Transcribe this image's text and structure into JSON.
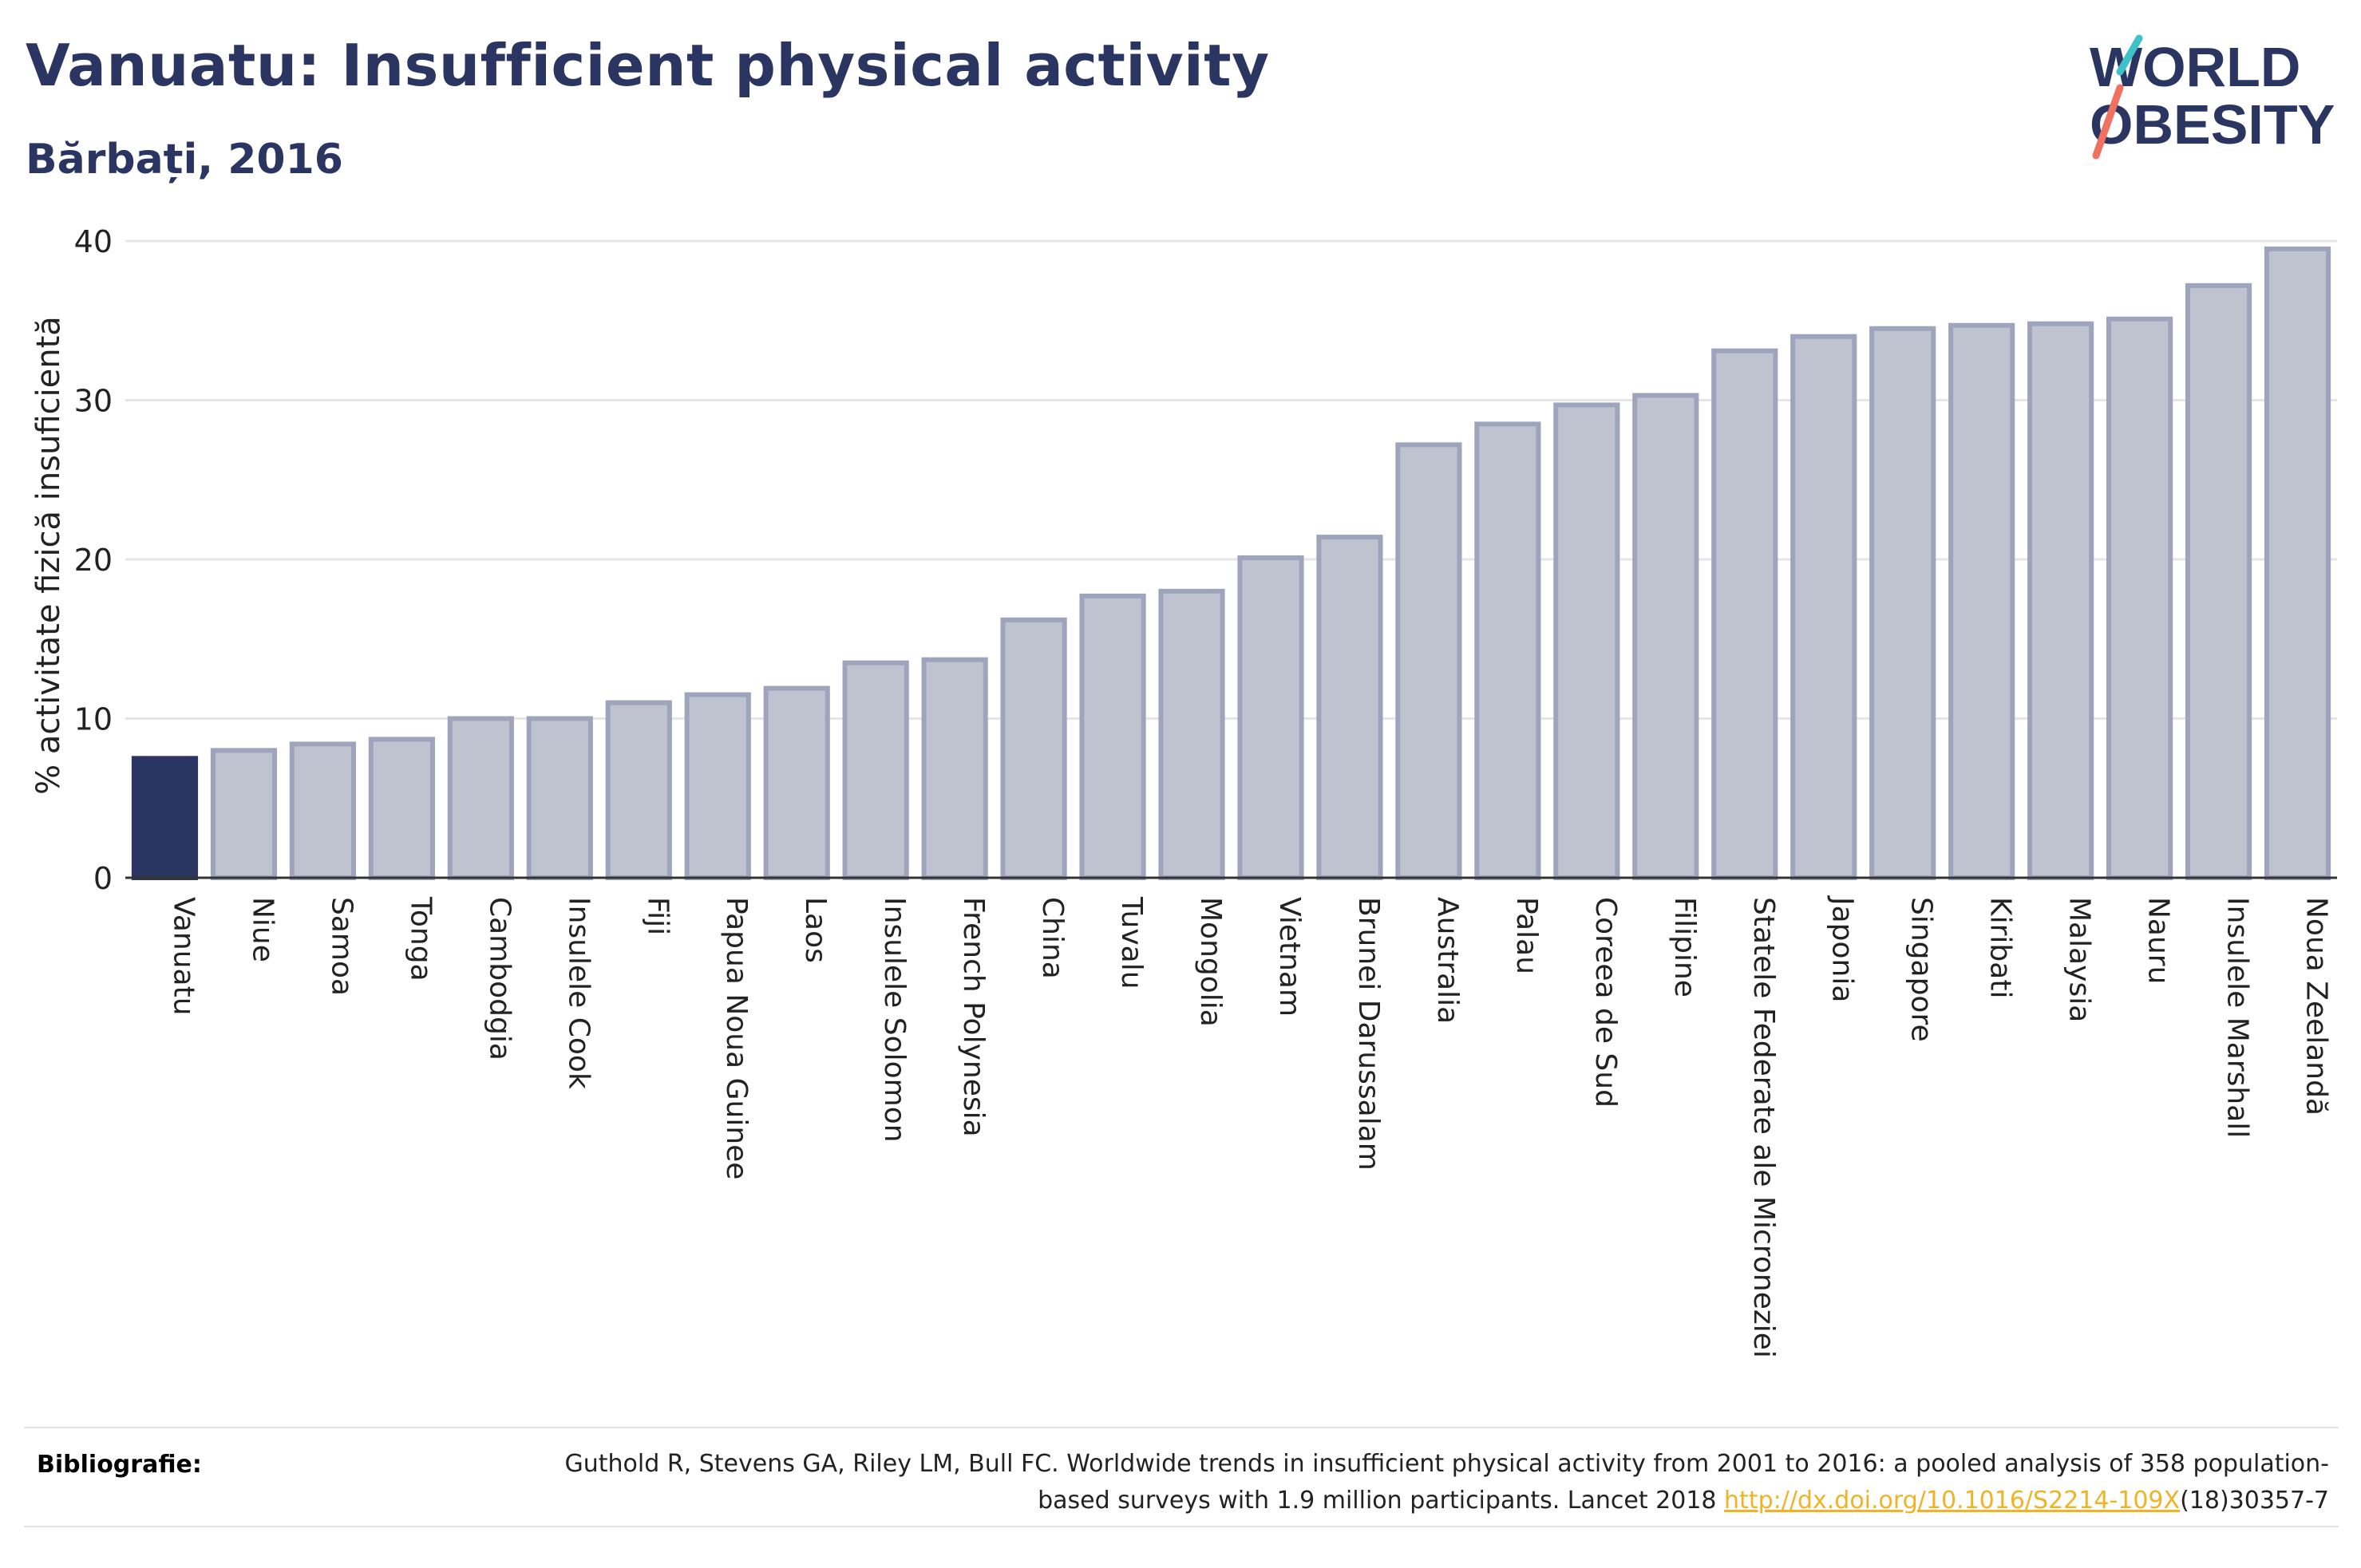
{
  "header": {
    "title": "Vanuatu: Insufficient physical activity",
    "subtitle": "Bărbați, 2016"
  },
  "logo": {
    "line1": "WORLD",
    "line2": "OBESITY",
    "accent_teal": "#3fc1c9",
    "accent_coral": "#f07061"
  },
  "chart_data": {
    "type": "bar",
    "ylabel": "% activitate fizică insuficientă",
    "xlabel": "",
    "ylim": [
      0,
      40
    ],
    "yticks": [
      0,
      10,
      20,
      30,
      40
    ],
    "grid": true,
    "highlight_color": "#2b3561",
    "bar_color": "#bfc3d0",
    "bar_edge_color": "#9ea4bc",
    "highlight_category": "Vanuatu",
    "categories": [
      "Vanuatu",
      "Niue",
      "Samoa",
      "Tonga",
      "Cambodgia",
      "Insulele Cook",
      "Fiji",
      "Papua Noua Guinee",
      "Laos",
      "Insulele Solomon",
      "French Polynesia",
      "China",
      "Tuvalu",
      "Mongolia",
      "Vietnam",
      "Brunei Darussalam",
      "Australia",
      "Palau",
      "Coreea de Sud",
      "Filipine",
      "Statele Federate ale Microneziei",
      "Japonia",
      "Singapore",
      "Kiribati",
      "Malaysia",
      "Nauru",
      "Insulele Marshall",
      "Noua Zeelandă"
    ],
    "values": [
      7.5,
      8.0,
      8.4,
      8.7,
      10.0,
      10.0,
      11.0,
      11.5,
      11.9,
      13.5,
      13.7,
      16.2,
      17.7,
      18.0,
      20.1,
      21.4,
      27.2,
      28.5,
      29.7,
      30.3,
      33.1,
      34.0,
      34.5,
      34.7,
      34.8,
      35.1,
      37.2,
      39.5
    ]
  },
  "bibliography": {
    "label": "Bibliografie:",
    "text_before": "Guthold R, Stevens GA, Riley LM, Bull FC. Worldwide trends in insufficient physical activity from 2001 to 2016: a pooled analysis of 358 population-based surveys with 1.9 million participants. Lancet 2018 ",
    "link": "http://dx.doi.org/10.1016/S2214-109X",
    "text_after": "(18)30357-7"
  }
}
